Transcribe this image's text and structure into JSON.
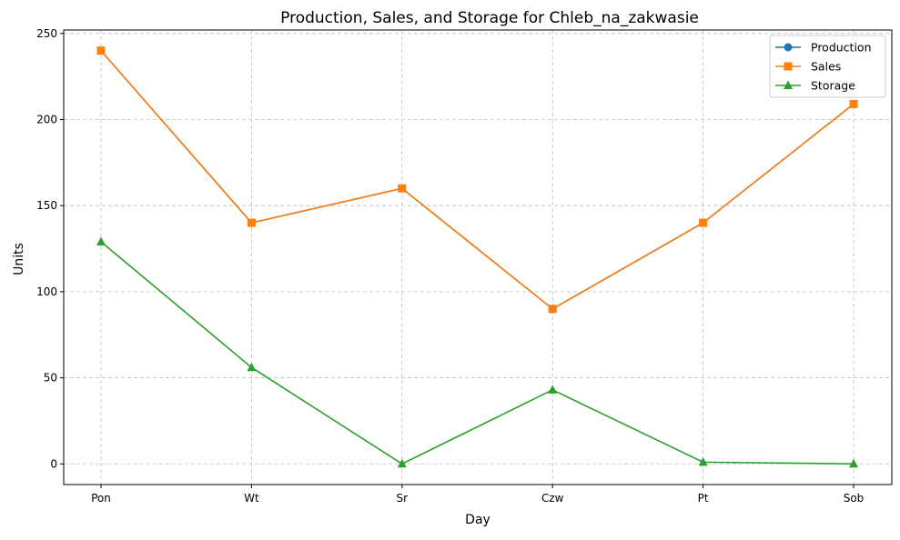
{
  "chart_data": {
    "type": "line",
    "title": "Production, Sales, and Storage for Chleb_na_zakwasie",
    "xlabel": "Day",
    "ylabel": "Units",
    "categories": [
      "Pon",
      "Wt",
      "Sr",
      "Czw",
      "Pt",
      "Sob"
    ],
    "ylim": [
      -12,
      252
    ],
    "yticks": [
      0,
      50,
      100,
      150,
      200,
      250
    ],
    "grid": true,
    "legend_position": "top-right",
    "series": [
      {
        "name": "Production",
        "values": [
          240,
          140,
          160,
          90,
          140,
          209
        ],
        "color": "#1f77b4",
        "marker": "circle"
      },
      {
        "name": "Sales",
        "values": [
          240,
          140,
          160,
          90,
          140,
          209
        ],
        "color": "#ff7f0e",
        "marker": "square"
      },
      {
        "name": "Storage",
        "values": [
          129,
          56,
          0,
          43,
          1,
          0
        ],
        "color": "#2ca02c",
        "marker": "triangle"
      }
    ]
  }
}
